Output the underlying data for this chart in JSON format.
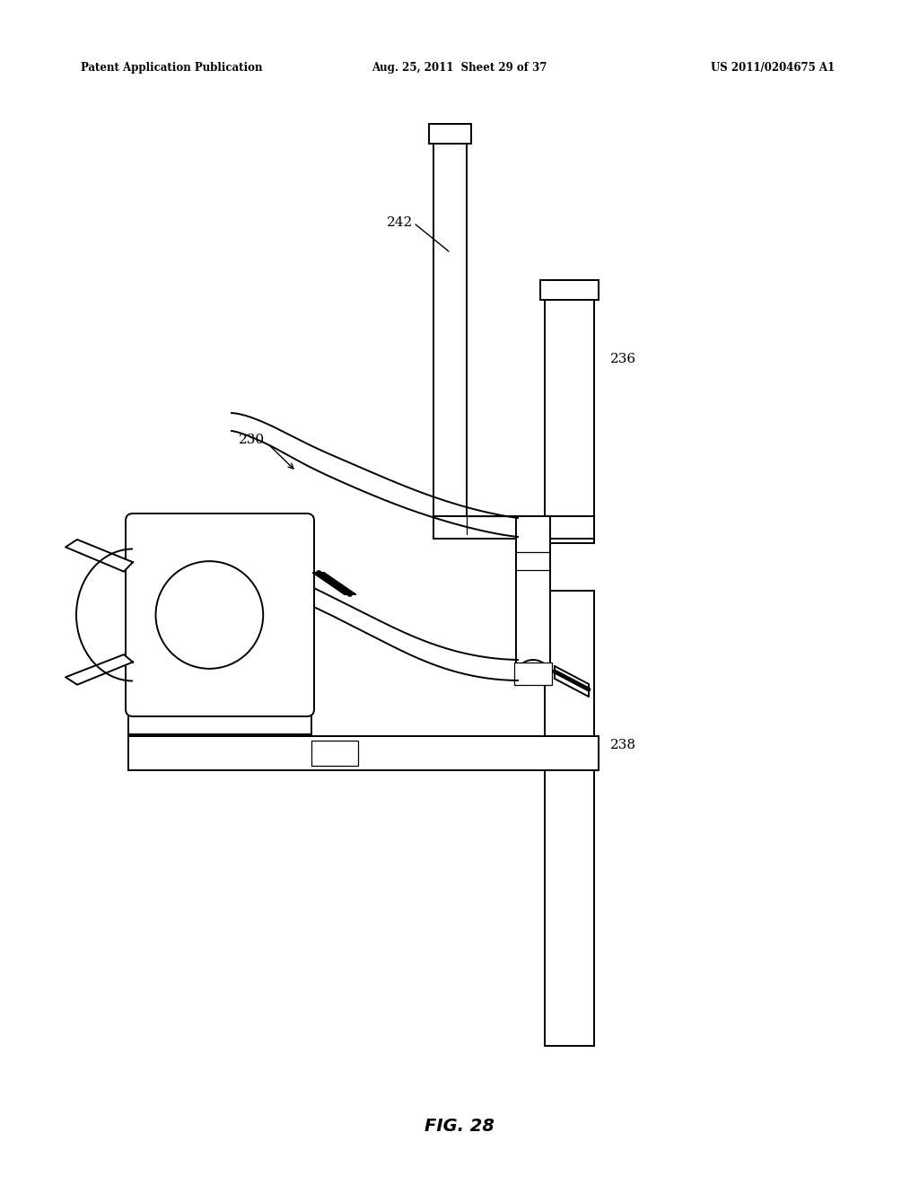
{
  "bg_color": "#ffffff",
  "line_color": "#000000",
  "header_left": "Patent Application Publication",
  "header_mid": "Aug. 25, 2011  Sheet 29 of 37",
  "header_right": "US 2011/0204675 A1",
  "footer": "FIG. 28",
  "lw": 1.4,
  "lw_thin": 0.9
}
